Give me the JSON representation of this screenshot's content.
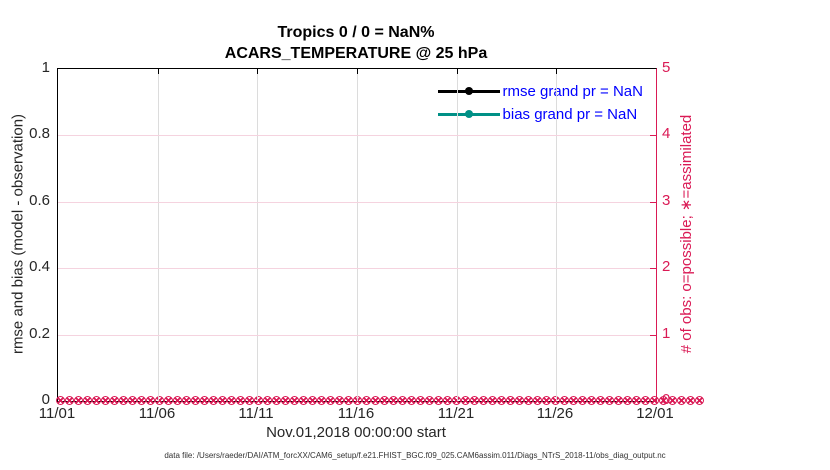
{
  "figure": {
    "title_line1": "Tropics 0 / 0 = NaN%",
    "title_line2": "ACARS_TEMPERATURE @ 25 hPa",
    "xlabel": "Nov.01,2018 00:00:00 start",
    "ylabel_left": "rmse and bias (model - observation)",
    "ylabel_right": "# of obs: o=possible; ∗=assimilated",
    "footer": "data file: /Users/raeder/DAI/ATM_forcXX/CAM6_setup/f.e21.FHIST_BGC.f09_025.CAM6assim.011/Diags_NTrS_2018-11/obs_diag_output.nc"
  },
  "chart_data": {
    "type": "line",
    "title": "Tropics 0 / 0 = NaN%",
    "subtitle": "ACARS_TEMPERATURE @ 25 hPa",
    "x_ticks": [
      "11/01",
      "11/06",
      "11/11",
      "11/16",
      "11/21",
      "11/26",
      "12/01"
    ],
    "xlabel": "Nov.01,2018 00:00:00 start",
    "y_left": {
      "label": "rmse and bias (model - observation)",
      "ticks": [
        "0",
        "0.2",
        "0.4",
        "0.6",
        "0.8",
        "1"
      ],
      "range": [
        0,
        1
      ]
    },
    "y_right": {
      "label": "# of obs: o=possible; ∗=assimilated",
      "ticks": [
        "0",
        "1",
        "2",
        "3",
        "4",
        "5"
      ],
      "range": [
        0,
        5
      ]
    },
    "series": [
      {
        "name": "rmse",
        "legend": "rmse grand pr = NaN",
        "color": "#000000",
        "values": "NaN (no line plotted)"
      },
      {
        "name": "bias",
        "legend": "bias grand pr = NaN",
        "color": "#009086",
        "values": "NaN (no line plotted)"
      },
      {
        "name": "obs possible (o)",
        "color": "#da1a55",
        "constant_value": 0,
        "note": "0 at every time step 11/01–12/01"
      },
      {
        "name": "obs assimilated (*)",
        "color": "#da1a55",
        "constant_value": 0,
        "note": "0 at every time step 11/01–12/01"
      }
    ],
    "legend_position": "top-right-inside",
    "grid": true,
    "obs_marker_count": 72
  },
  "colors": {
    "axis_left": "#000000",
    "axis_right": "#da1a55",
    "legend_text": "#0000ff",
    "grid_vertical": "#dcdcdc",
    "grid_horizontal": "#f5d3df",
    "tick_text": "#262626",
    "rmse": "#000000",
    "bias": "#009086",
    "obs_markers": "#da1a55"
  }
}
